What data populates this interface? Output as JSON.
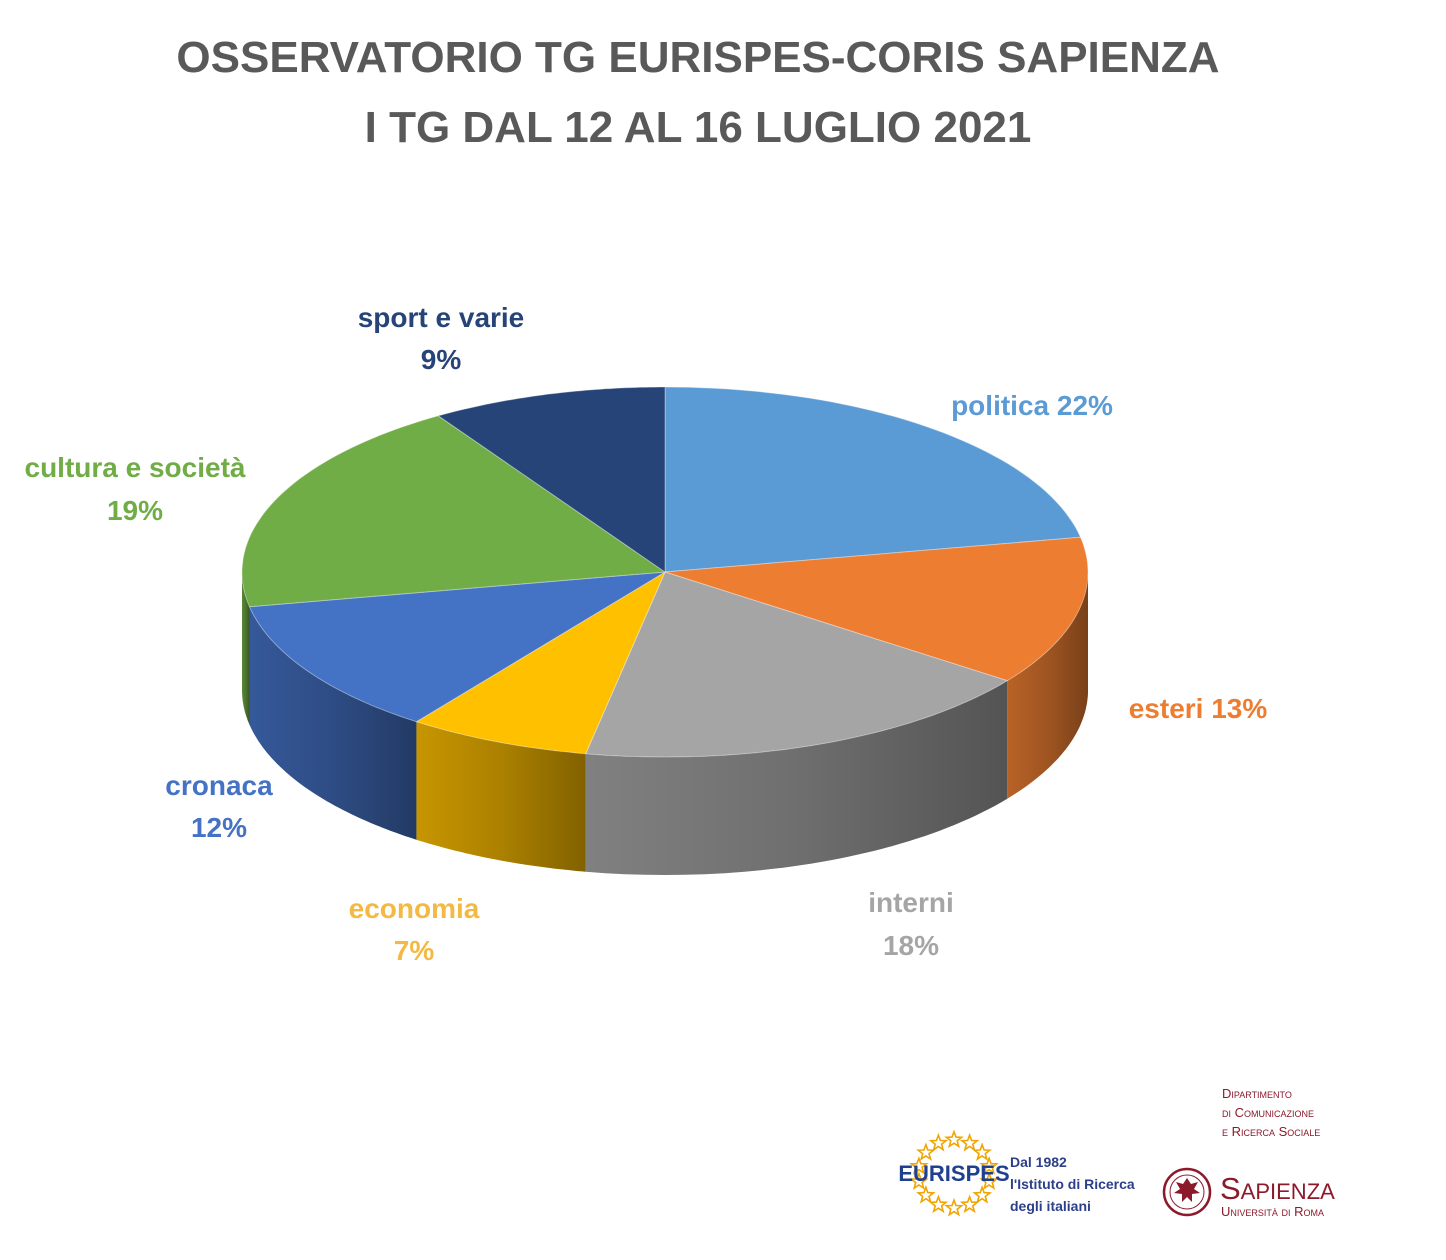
{
  "chart_data": {
    "type": "pie",
    "title_lines": [
      "OSSERVATORIO TG EURISPES-CORIS SAPIENZA",
      "I TG DAL 12 AL 16 LUGLIO 2021"
    ],
    "slices": [
      {
        "label": "politica",
        "value_text": "22%",
        "value": 22,
        "color": "#5b9bd5",
        "text_color": "#5b9bd5"
      },
      {
        "label": "esteri",
        "value_text": "13%",
        "value": 13,
        "color": "#ed7d31",
        "text_color": "#ed7d31"
      },
      {
        "label": "interni",
        "value_text": "18%",
        "value": 18,
        "color": "#a5a5a5",
        "text_color": "#a5a5a5"
      },
      {
        "label": "economia",
        "value_text": "7%",
        "value": 7,
        "color": "#ffc000",
        "text_color": "#f4b942"
      },
      {
        "label": "cronaca",
        "value_text": "12%",
        "value": 12,
        "color": "#4472c4",
        "text_color": "#4472c4"
      },
      {
        "label": "cultura e società",
        "value_text": "19%",
        "value": 19,
        "color": "#70ad47",
        "text_color": "#70ad47"
      },
      {
        "label": "sport e varie",
        "value_text": "9%",
        "value": 9,
        "color": "#264478",
        "text_color": "#264478"
      }
    ]
  },
  "logos": {
    "eurispes": {
      "name": "EURISPES",
      "tagline": [
        "Dal 1982",
        "l'Istituto di Ricerca",
        "degli italiani"
      ]
    },
    "sapienza": {
      "department": [
        "Dipartimento",
        "di Comunicazione",
        "e Ricerca Sociale"
      ],
      "name": "Sapienza",
      "subtitle": "Università di Roma"
    }
  }
}
